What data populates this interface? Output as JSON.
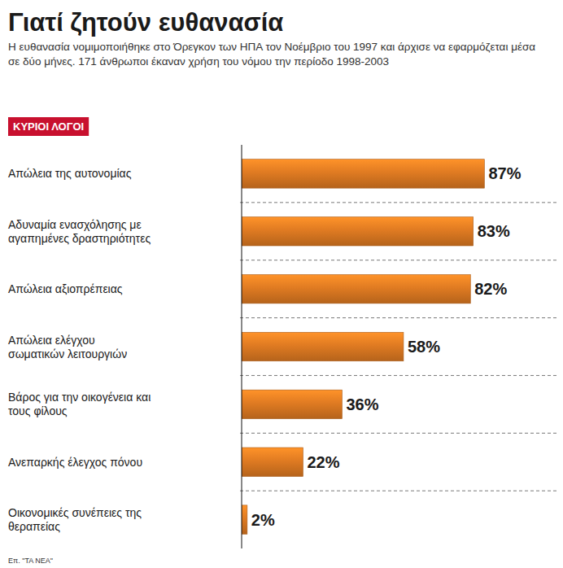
{
  "chart_data": {
    "type": "bar",
    "orientation": "horizontal",
    "title": "Γιατί ζητούν ευθανασία",
    "subtitle": "Η ευθανασία νομιμοποιήθηκε στο Όρεγκον των ΗΠΑ τον Νοέμβριο του 1997 και άρχισε να εφαρμόζεται μέσα σε δύο μήνες. 171 άνθρωποι έκαναν χρήση του νόμου την περίοδο 1998-2003",
    "annotations": [
      "ΚΥΡΙΟΙ ΛΟΓΟΙ"
    ],
    "source": "Επ. \"ΤΑ ΝΕΑ\"",
    "categories": [
      "Απώλεια της αυτονομίας",
      "Αδυναμία ενασχόλησης με αγαπημένες δραστηριότητες",
      "Απώλεια αξιοπρέπειας",
      "Απώλεια ελέγχου σωματικών λειτουργιών",
      "Βάρος για την οικογένεια και τους φίλους",
      "Ανεπαρκής έλεγχος πόνου",
      "Οικονομικές συνέπειες της θεραπείας"
    ],
    "values": [
      87,
      83,
      82,
      58,
      36,
      22,
      2
    ],
    "value_labels": [
      "87%",
      "83%",
      "82%",
      "58%",
      "36%",
      "22%",
      "2%"
    ],
    "color": "#e07b22",
    "xlim": [
      0,
      100
    ],
    "grid": false,
    "tick_labels": false,
    "data_labels": true
  }
}
